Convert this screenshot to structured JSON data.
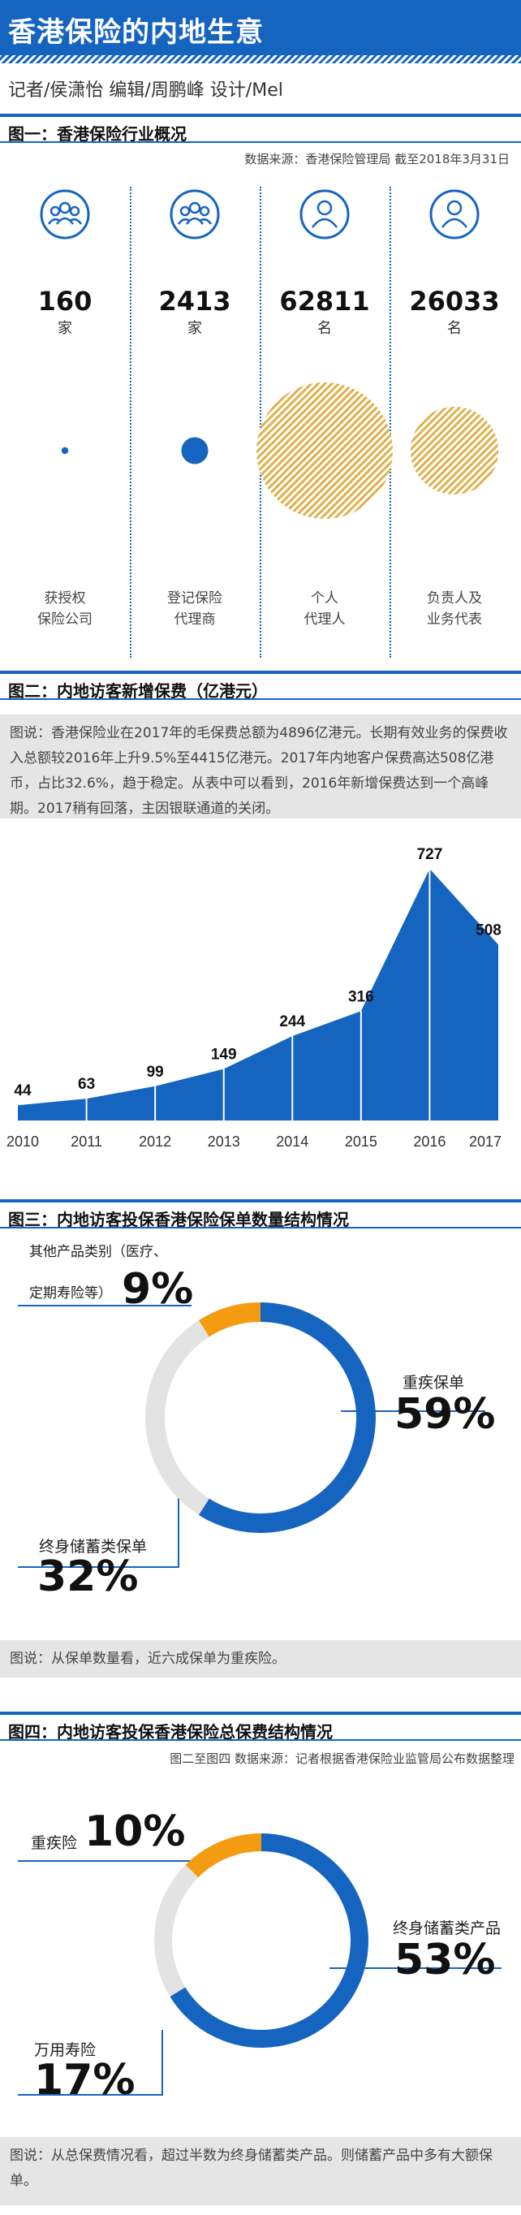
{
  "header": {
    "title": "香港保险的内地生意",
    "byline": "记者/侯潇怡  编辑/周鹏峰  设计/Mel"
  },
  "sec1": {
    "heading": "图一：香港保险行业概况",
    "source": "数据来源：香港保险管理局 截至2018年3月31日",
    "columns": [
      {
        "icon": "group-icon",
        "number": "160",
        "unit": "家",
        "name1": "获授权",
        "name2": "保险公司",
        "value": 160,
        "style": "solid"
      },
      {
        "icon": "group-icon",
        "number": "2413",
        "unit": "家",
        "name1": "登记保险",
        "name2": "代理商",
        "value": 2413,
        "style": "solid"
      },
      {
        "icon": "person-icon",
        "number": "62811",
        "unit": "名",
        "name1": "个人",
        "name2": "代理人",
        "value": 62811,
        "style": "hatched"
      },
      {
        "icon": "person-icon",
        "number": "26033",
        "unit": "名",
        "name1": "负责人及",
        "name2": "业务代表",
        "value": 26033,
        "style": "hatched"
      }
    ]
  },
  "sec2": {
    "heading": "图二：内地访客新增保费（亿港元）",
    "caption": "图说：香港保险业在2017年的毛保费总额为4896亿港元。长期有效业务的保费收入总额较2016年上升9.5%至4415亿港元。2017年内地客户保费高达508亿港币，占比32.6%，趋于稳定。从表中可以看到，2016年新增保费达到一个高峰期。2017稍有回落，主因银联通道的关闭。"
  },
  "sec3": {
    "heading": "图三：内地访客投保香港保险保单数量结构情况",
    "labels": {
      "other_line1": "其他产品类别（医疗、",
      "other_line2": "定期寿险等）",
      "other_pct": "9%",
      "ci_name": "重疾保单",
      "ci_pct": "59%",
      "sav_name": "终身储蓄类保单",
      "sav_pct": "32%"
    },
    "caption": "图说：从保单数量看，近六成保单为重疾险。"
  },
  "sec4": {
    "heading": "图四：内地访客投保香港保险总保费结构情况",
    "source": "图二至图四 数据来源：记者根据香港保险业监管局公布数据整理",
    "labels": {
      "ci_name": "重疾险",
      "ci_pct": "10%",
      "sav_name": "终身储蓄类产品",
      "sav_pct": "53%",
      "ul_name": "万用寿险",
      "ul_pct": "17%"
    },
    "caption": "图说：从总保费情况看，超过半数为终身储蓄类产品。则储蓄产品中多有大额保单。"
  },
  "colors": {
    "blue": "#1565c0",
    "orange": "#f39c12",
    "gray": "#e3e3e3",
    "hatch": "#e0b04a"
  },
  "chart_data": [
    {
      "type": "area",
      "title": "内地访客新增保费（亿港元）",
      "categories": [
        "2010",
        "2011",
        "2012",
        "2013",
        "2014",
        "2015",
        "2016",
        "2017"
      ],
      "values": [
        44,
        63,
        99,
        149,
        244,
        316,
        727,
        508
      ]
    },
    {
      "type": "pie",
      "title": "内地访客投保香港保险保单数量结构情况",
      "labels": [
        "重疾保单",
        "终身储蓄类保单",
        "其他产品类别（医疗、定期寿险等）"
      ],
      "values": [
        59,
        32,
        9
      ]
    },
    {
      "type": "pie",
      "title": "内地访客投保香港保险总保费结构情况",
      "labels": [
        "终身储蓄类产品",
        "万用寿险",
        "重疾险"
      ],
      "values": [
        53,
        17,
        10
      ]
    }
  ]
}
